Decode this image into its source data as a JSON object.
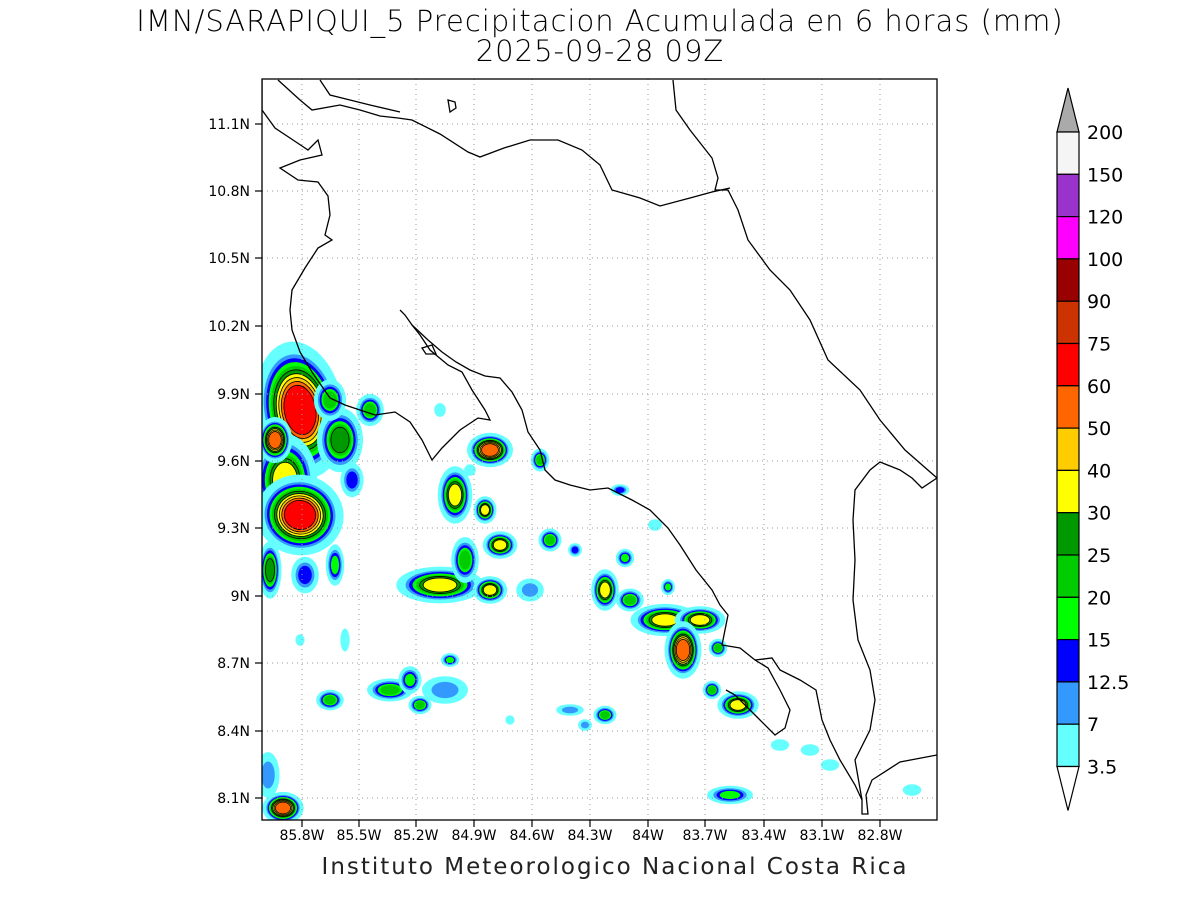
{
  "title": {
    "line1": "IMN/SARAPIQUI_5 Precipitacion Acumulada en 6 horas (mm)",
    "line2": "2025-09-28 09Z"
  },
  "footer": "Instituto Meteorologico Nacional Costa Rica",
  "axes": {
    "lat_ticks": [
      "11.1N",
      "10.8N",
      "10.5N",
      "10.2N",
      "9.9N",
      "9.6N",
      "9.3N",
      "9N",
      "8.7N",
      "8.4N",
      "8.1N"
    ],
    "lon_ticks": [
      "85.8W",
      "85.5W",
      "85.2W",
      "84.9W",
      "84.6W",
      "84.3W",
      "84W",
      "83.7W",
      "83.4W",
      "83.1W",
      "82.8W"
    ]
  },
  "colorbar": {
    "labels": [
      "200",
      "150",
      "120",
      "100",
      "90",
      "75",
      "60",
      "50",
      "40",
      "30",
      "25",
      "20",
      "15",
      "12.5",
      "7",
      "3.5"
    ],
    "colors": [
      "#f5f5f5",
      "#9933cc",
      "#ff00ff",
      "#990000",
      "#cc3300",
      "#ff0000",
      "#ff6600",
      "#ffcc00",
      "#ffff00",
      "#009900",
      "#00cc00",
      "#00ff00",
      "#0000ff",
      "#3399ff",
      "#66ffff"
    ],
    "over_color": "#aaaaaa",
    "under_color": "#ffffff"
  },
  "levels": {
    "l1_color": "#66ffff",
    "l2_color": "#3399ff",
    "l3_color": "#0000ff",
    "l4_color": "#00ff00",
    "l5_color": "#00cc00",
    "l6_color": "#009900",
    "l7_color": "#ffff00",
    "l8_color": "#ffcc00",
    "l9_color": "#ff6600",
    "l10_color": "#ff0000"
  }
}
